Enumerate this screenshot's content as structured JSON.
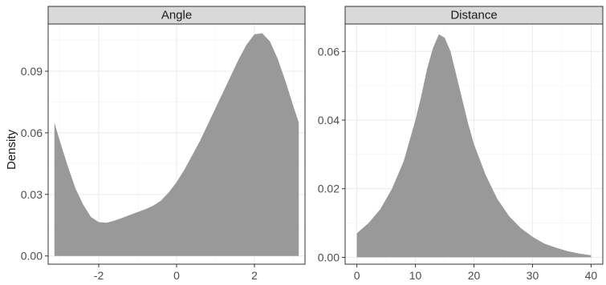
{
  "chart_data": [
    {
      "type": "area",
      "title": "Angle",
      "xlabel": "",
      "ylabel": "Density",
      "xlim": [
        -3.3,
        3.3
      ],
      "ylim": [
        -0.004,
        0.113
      ],
      "xticks": [
        -2,
        0,
        2
      ],
      "xtick_labels": [
        "-2",
        "0",
        "2"
      ],
      "yticks": [
        0.0,
        0.03,
        0.06,
        0.09
      ],
      "ytick_labels": [
        "0.00",
        "0.03",
        "0.06",
        "0.09"
      ],
      "grid": true,
      "x": [
        -3.14,
        -3.0,
        -2.8,
        -2.6,
        -2.4,
        -2.2,
        -2.0,
        -1.8,
        -1.6,
        -1.4,
        -1.2,
        -1.0,
        -0.8,
        -0.6,
        -0.4,
        -0.2,
        0.0,
        0.2,
        0.4,
        0.6,
        0.8,
        1.0,
        1.2,
        1.4,
        1.6,
        1.8,
        2.0,
        2.2,
        2.4,
        2.6,
        2.8,
        3.0,
        3.14
      ],
      "y": [
        0.065,
        0.056,
        0.044,
        0.033,
        0.025,
        0.019,
        0.0165,
        0.0162,
        0.0172,
        0.0185,
        0.02,
        0.0214,
        0.0228,
        0.0245,
        0.027,
        0.031,
        0.036,
        0.042,
        0.049,
        0.056,
        0.064,
        0.072,
        0.08,
        0.088,
        0.096,
        0.103,
        0.108,
        0.1085,
        0.1045,
        0.096,
        0.085,
        0.073,
        0.065
      ]
    },
    {
      "type": "area",
      "title": "Distance",
      "xlabel": "",
      "ylabel": "",
      "xlim": [
        -2,
        42
      ],
      "ylim": [
        -0.002,
        0.068
      ],
      "xticks": [
        0,
        10,
        20,
        30,
        40
      ],
      "xtick_labels": [
        "0",
        "10",
        "20",
        "30",
        "40"
      ],
      "yticks": [
        0.0,
        0.02,
        0.04,
        0.06
      ],
      "ytick_labels": [
        "0.00",
        "0.02",
        "0.04",
        "0.06"
      ],
      "grid": true,
      "x": [
        0,
        2,
        4,
        6,
        8,
        10,
        11,
        12,
        13,
        14,
        15,
        16,
        17,
        18,
        19,
        20,
        22,
        24,
        26,
        28,
        30,
        32,
        34,
        36,
        38,
        40
      ],
      "y": [
        0.007,
        0.01,
        0.014,
        0.02,
        0.028,
        0.04,
        0.047,
        0.055,
        0.061,
        0.065,
        0.064,
        0.06,
        0.053,
        0.046,
        0.039,
        0.033,
        0.024,
        0.017,
        0.012,
        0.0085,
        0.006,
        0.004,
        0.0028,
        0.0018,
        0.0011,
        0.0006
      ]
    }
  ]
}
